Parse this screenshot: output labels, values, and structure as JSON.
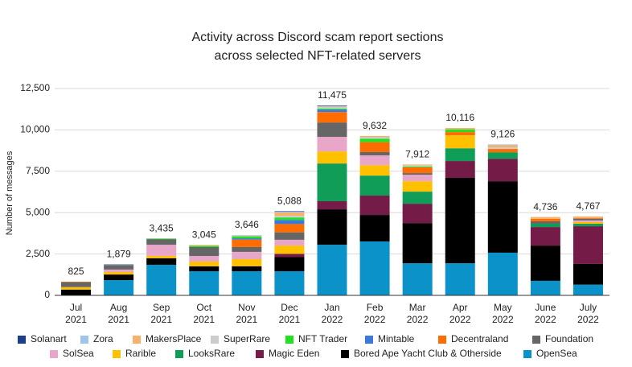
{
  "chart_data": {
    "type": "stacked_bar",
    "title": "Activity across Discord scam report sections",
    "subtitle": "across selected NFT-related servers",
    "y_label": "Number of messages",
    "categories": [
      "Jul\n2021",
      "Aug\n2021",
      "Sep\n2021",
      "Oct\n2021",
      "Nov\n2021",
      "Dec\n2021",
      "Jan\n2022",
      "Feb\n2022",
      "Mar\n2022",
      "Apr\n2022",
      "May\n2022",
      "June\n2022",
      "July\n2022"
    ],
    "series": [
      {
        "name": "Solanart",
        "color": "#1c3f8c",
        "values": [
          0,
          19,
          0,
          0,
          0,
          28,
          35,
          0,
          0,
          0,
          0,
          0,
          0
        ]
      },
      {
        "name": "Zora",
        "color": "#9fc5e8",
        "values": [
          0,
          20,
          0,
          0,
          0,
          50,
          40,
          0,
          0,
          0,
          50,
          0,
          0
        ]
      },
      {
        "name": "MakersPlace",
        "color": "#f6b26b",
        "values": [
          0,
          0,
          0,
          45,
          0,
          200,
          30,
          72,
          50,
          96,
          126,
          106,
          87
        ]
      },
      {
        "name": "SuperRare",
        "color": "#cccccc",
        "values": [
          0,
          0,
          0,
          0,
          76,
          100,
          80,
          100,
          72,
          0,
          100,
          0,
          0
        ]
      },
      {
        "name": "NFT Trader",
        "color": "#22e022",
        "values": [
          0,
          0,
          35,
          80,
          120,
          150,
          60,
          200,
          50,
          150,
          0,
          0,
          0
        ]
      },
      {
        "name": "Mintable",
        "color": "#3c78d8",
        "values": [
          0,
          0,
          0,
          0,
          80,
          250,
          150,
          0,
          0,
          0,
          0,
          0,
          0
        ]
      },
      {
        "name": "Decentraland",
        "color": "#ff6d01",
        "values": [
          25,
          0,
          0,
          0,
          450,
          500,
          630,
          600,
          350,
          200,
          200,
          150,
          50
        ]
      },
      {
        "name": "Foundation",
        "color": "#666666",
        "values": [
          300,
          280,
          340,
          540,
          290,
          450,
          870,
          200,
          100,
          0,
          0,
          150,
          100
        ]
      },
      {
        "name": "SolSea",
        "color": "#e8a6c8",
        "values": [
          0,
          150,
          670,
          340,
          440,
          350,
          880,
          590,
          390,
          0,
          0,
          0,
          100
        ]
      },
      {
        "name": "Rarible",
        "color": "#ffc000",
        "values": [
          150,
          150,
          150,
          290,
          430,
          500,
          730,
          630,
          630,
          780,
          0,
          0,
          100
        ]
      },
      {
        "name": "LooksRare",
        "color": "#0f9d58",
        "values": [
          0,
          0,
          0,
          0,
          0,
          0,
          2280,
          1210,
          730,
          770,
          390,
          200,
          150
        ]
      },
      {
        "name": "Magic Eden",
        "color": "#741b47",
        "values": [
          0,
          0,
          0,
          0,
          0,
          200,
          490,
          1170,
          1170,
          1020,
          1360,
          1120,
          2280
        ]
      },
      {
        "name": "Bored Ape Yacht Club & Otherside",
        "color": "#000000",
        "values": [
          350,
          340,
          390,
          290,
          300,
          850,
          2140,
          1600,
          2430,
          5160,
          4320,
          2130,
          1250
        ]
      },
      {
        "name": "OpenSea",
        "color": "#0b93c9",
        "values": [
          0,
          920,
          1850,
          1460,
          1460,
          1460,
          3060,
          3260,
          1940,
          1940,
          2580,
          880,
          650
        ]
      }
    ],
    "totals": [
      825,
      1879,
      3435,
      3045,
      3646,
      5088,
      11475,
      9632,
      7912,
      10116,
      9126,
      4736,
      4767
    ],
    "total_labels": [
      "825",
      "1,879",
      "3,435",
      "3,045",
      "3,646",
      "5,088",
      "11,475",
      "9,632",
      "7,912",
      "10,116",
      "9,126",
      "4,736",
      "4,767"
    ],
    "ylim": [
      0,
      12500
    ],
    "yticks": [
      0,
      {
        "value": 2500,
        "label": "2,500"
      },
      {
        "value": 5000,
        "label": "5,000"
      },
      {
        "value": 7500,
        "label": "7,500"
      },
      {
        "value": 10000,
        "label": "10,000"
      },
      {
        "value": 12500,
        "label": "12,500"
      }
    ],
    "grid": true,
    "legend": "bottom"
  }
}
